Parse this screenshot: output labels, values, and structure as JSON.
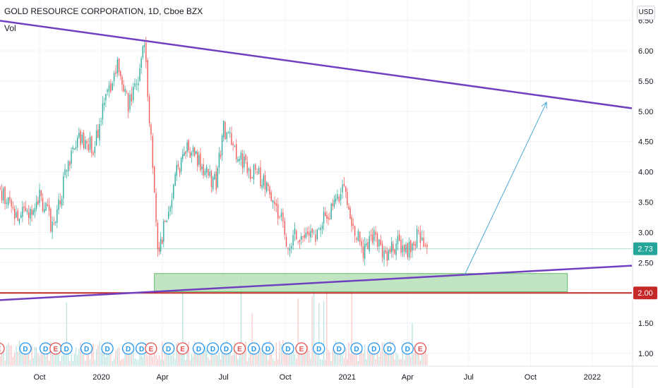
{
  "header": {
    "title": "GOLD RESOURCE CORPORATION, 1D, Cboe BZX",
    "vol_label": "Vol",
    "currency": "USD"
  },
  "colors": {
    "up": "#26a69a",
    "down": "#ef5350",
    "trendline": "#6f3fc0",
    "support": "#c62828",
    "zone_fill": "#b7e1b9",
    "zone_border": "#4caf50",
    "arrow": "#4aa8d8",
    "last_price": "#26a69a"
  },
  "chart_data": {
    "type": "candlestick",
    "title": "GOLD RESOURCE CORPORATION, 1D, Cboe BZX",
    "x_axis": {
      "tick_labels": [
        "Oct",
        "2020",
        "Apr",
        "Jul",
        "Oct",
        "2021",
        "Apr",
        "Jul",
        "Oct",
        "2022"
      ]
    },
    "y_axis": {
      "tick_labels": [
        "1.00",
        "1.50",
        "2.00",
        "2.50",
        "3.00",
        "3.50",
        "4.00",
        "4.50",
        "5.00",
        "5.50",
        "6.00",
        "6.50"
      ],
      "range": [
        0.9,
        6.6
      ],
      "side": "right"
    },
    "last_price": {
      "label": "2.73",
      "value": 2.73
    },
    "support_level": {
      "label": "2.00",
      "value": 2.0
    },
    "price_path": [
      {
        "date": "2019-08-01",
        "close": 3.7
      },
      {
        "date": "2019-09-01",
        "close": 3.2
      },
      {
        "date": "2019-10-01",
        "close": 3.6
      },
      {
        "date": "2019-10-20",
        "close": 3.1
      },
      {
        "date": "2019-11-15",
        "close": 4.2
      },
      {
        "date": "2019-12-01",
        "close": 4.6
      },
      {
        "date": "2019-12-20",
        "close": 4.4
      },
      {
        "date": "2020-01-10",
        "close": 5.3
      },
      {
        "date": "2020-01-25",
        "close": 5.7
      },
      {
        "date": "2020-02-10",
        "close": 5.1
      },
      {
        "date": "2020-02-25",
        "close": 5.5
      },
      {
        "date": "2020-03-05",
        "close": 6.1
      },
      {
        "date": "2020-03-15",
        "close": 4.5
      },
      {
        "date": "2020-03-25",
        "close": 2.6
      },
      {
        "date": "2020-04-05",
        "close": 3.2
      },
      {
        "date": "2020-04-20",
        "close": 3.9
      },
      {
        "date": "2020-05-10",
        "close": 4.4
      },
      {
        "date": "2020-06-01",
        "close": 4.0
      },
      {
        "date": "2020-06-20",
        "close": 3.8
      },
      {
        "date": "2020-07-01",
        "close": 4.7
      },
      {
        "date": "2020-07-20",
        "close": 4.3
      },
      {
        "date": "2020-08-10",
        "close": 4.0
      },
      {
        "date": "2020-08-25",
        "close": 3.9
      },
      {
        "date": "2020-09-10",
        "close": 3.6
      },
      {
        "date": "2020-09-25",
        "close": 3.2
      },
      {
        "date": "2020-10-05",
        "close": 2.8
      },
      {
        "date": "2020-10-20",
        "close": 3.0
      },
      {
        "date": "2020-11-10",
        "close": 2.9
      },
      {
        "date": "2020-11-25",
        "close": 3.2
      },
      {
        "date": "2020-12-15",
        "close": 3.5
      },
      {
        "date": "2020-12-30",
        "close": 3.7
      },
      {
        "date": "2021-01-10",
        "close": 3.1
      },
      {
        "date": "2021-01-25",
        "close": 2.7
      },
      {
        "date": "2021-02-10",
        "close": 2.9
      },
      {
        "date": "2021-02-25",
        "close": 2.6
      },
      {
        "date": "2021-03-15",
        "close": 2.8
      },
      {
        "date": "2021-04-01",
        "close": 2.75
      },
      {
        "date": "2021-04-15",
        "close": 2.95
      },
      {
        "date": "2021-04-30",
        "close": 2.73
      }
    ],
    "annotations": {
      "descending_trendline": {
        "start": {
          "date": "2019-08-01",
          "value": 6.5
        },
        "end": {
          "date": "2022-03-01",
          "value": 5.05
        }
      },
      "ascending_trendline": {
        "start": {
          "date": "2019-08-01",
          "value": 1.88
        },
        "end": {
          "date": "2022-03-01",
          "value": 2.45
        }
      },
      "demand_zone": {
        "start_date": "2020-03-20",
        "end_date": "2021-11-25",
        "low": 2.02,
        "high": 2.32
      },
      "projection_arrow": {
        "start": {
          "date": "2021-06-25",
          "value": 2.3
        },
        "end": {
          "date": "2021-10-25",
          "value": 5.15
        }
      }
    },
    "events": [
      {
        "type": "E",
        "date": "2019-08-01"
      },
      {
        "type": "D",
        "date": "2019-09-10"
      },
      {
        "type": "D",
        "date": "2019-10-10"
      },
      {
        "type": "E",
        "date": "2019-10-25"
      },
      {
        "type": "D",
        "date": "2019-11-10"
      },
      {
        "type": "D",
        "date": "2019-12-10"
      },
      {
        "type": "D",
        "date": "2020-01-10"
      },
      {
        "type": "D",
        "date": "2020-02-10"
      },
      {
        "type": "D",
        "date": "2020-03-01"
      },
      {
        "type": "E",
        "date": "2020-03-15"
      },
      {
        "type": "D",
        "date": "2020-04-10"
      },
      {
        "type": "E",
        "date": "2020-05-01"
      },
      {
        "type": "D",
        "date": "2020-05-25"
      },
      {
        "type": "D",
        "date": "2020-06-15"
      },
      {
        "type": "D",
        "date": "2020-07-05"
      },
      {
        "type": "E",
        "date": "2020-07-25"
      },
      {
        "type": "D",
        "date": "2020-08-15"
      },
      {
        "type": "D",
        "date": "2020-09-05"
      },
      {
        "type": "D",
        "date": "2020-10-05"
      },
      {
        "type": "E",
        "date": "2020-10-25"
      },
      {
        "type": "D",
        "date": "2020-11-20"
      },
      {
        "type": "D",
        "date": "2020-12-20"
      },
      {
        "type": "D",
        "date": "2021-01-15"
      },
      {
        "type": "D",
        "date": "2021-02-10"
      },
      {
        "type": "D",
        "date": "2021-03-05"
      },
      {
        "type": "D",
        "date": "2021-04-01"
      },
      {
        "type": "E",
        "date": "2021-04-20"
      }
    ]
  }
}
